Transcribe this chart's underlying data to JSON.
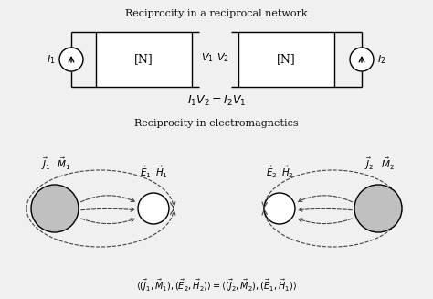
{
  "title1": "Reciprocity in a reciprocal network",
  "title2": "Reciprocity in electromagnetics",
  "equation1": "$I_1V_2 = I_2V_1$",
  "bg_color": "#f0f0f0",
  "box_color": "#000000",
  "circle_fill_gray": "#c0c0c0",
  "circle_fill_white": "#ffffff",
  "dashed_color": "#444444",
  "font_color": "#111111"
}
